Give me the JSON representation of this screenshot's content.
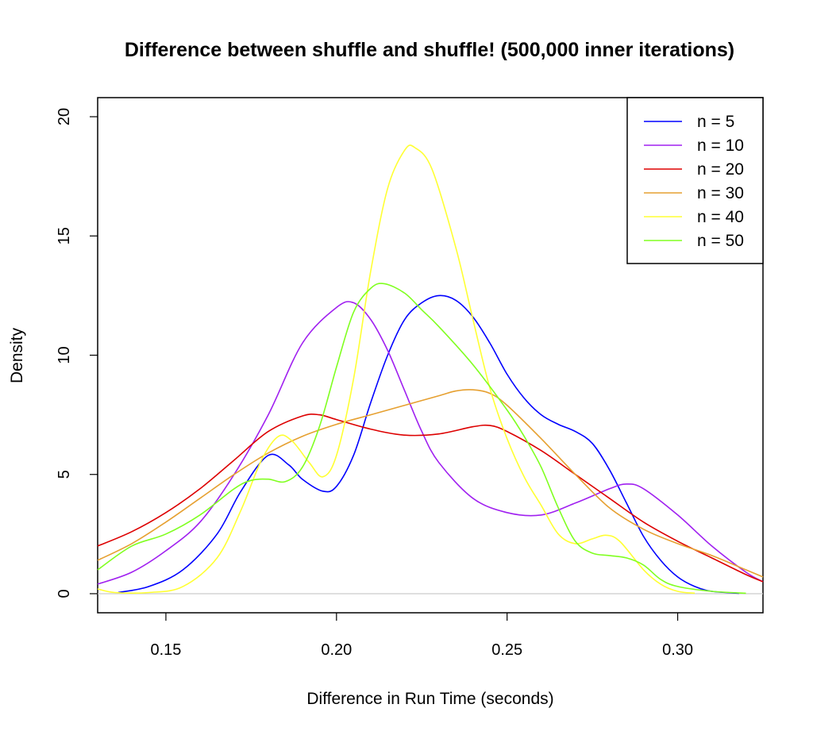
{
  "chart_data": {
    "type": "line",
    "title": "Difference between shuffle and shuffle! (500,000 inner iterations)",
    "xlabel": "Difference in Run Time (seconds)",
    "ylabel": "Density",
    "xlim": [
      0.13,
      0.325
    ],
    "ylim": [
      -0.8,
      20.8
    ],
    "xticks": [
      0.15,
      0.2,
      0.25,
      0.3
    ],
    "xtick_labels": [
      "0.15",
      "0.20",
      "0.25",
      "0.30"
    ],
    "yticks": [
      0,
      5,
      10,
      15,
      20
    ],
    "ytick_labels": [
      "0",
      "5",
      "10",
      "15",
      "20"
    ],
    "grid": false,
    "zero_line": true,
    "legend_position": "top-right",
    "series": [
      {
        "name": "n = 5",
        "color": "#0000ff",
        "points": [
          [
            0.136,
            0.05
          ],
          [
            0.145,
            0.3
          ],
          [
            0.155,
            1.0
          ],
          [
            0.165,
            2.5
          ],
          [
            0.172,
            4.3
          ],
          [
            0.18,
            5.8
          ],
          [
            0.186,
            5.4
          ],
          [
            0.19,
            4.8
          ],
          [
            0.196,
            4.3
          ],
          [
            0.2,
            4.5
          ],
          [
            0.205,
            5.8
          ],
          [
            0.21,
            8.0
          ],
          [
            0.215,
            10.0
          ],
          [
            0.22,
            11.5
          ],
          [
            0.225,
            12.2
          ],
          [
            0.23,
            12.5
          ],
          [
            0.235,
            12.3
          ],
          [
            0.24,
            11.6
          ],
          [
            0.245,
            10.5
          ],
          [
            0.25,
            9.2
          ],
          [
            0.255,
            8.2
          ],
          [
            0.26,
            7.5
          ],
          [
            0.265,
            7.1
          ],
          [
            0.27,
            6.8
          ],
          [
            0.275,
            6.3
          ],
          [
            0.28,
            5.2
          ],
          [
            0.285,
            3.8
          ],
          [
            0.29,
            2.4
          ],
          [
            0.295,
            1.4
          ],
          [
            0.3,
            0.7
          ],
          [
            0.305,
            0.3
          ],
          [
            0.31,
            0.1
          ],
          [
            0.318,
            0.02
          ]
        ]
      },
      {
        "name": "n = 10",
        "color": "#a020f0",
        "points": [
          [
            0.13,
            0.4
          ],
          [
            0.14,
            0.9
          ],
          [
            0.15,
            1.8
          ],
          [
            0.16,
            3.0
          ],
          [
            0.17,
            5.0
          ],
          [
            0.18,
            7.5
          ],
          [
            0.19,
            10.5
          ],
          [
            0.2,
            12.0
          ],
          [
            0.205,
            12.2
          ],
          [
            0.21,
            11.5
          ],
          [
            0.215,
            10.2
          ],
          [
            0.22,
            8.5
          ],
          [
            0.225,
            6.8
          ],
          [
            0.23,
            5.5
          ],
          [
            0.24,
            4.0
          ],
          [
            0.25,
            3.4
          ],
          [
            0.26,
            3.3
          ],
          [
            0.27,
            3.8
          ],
          [
            0.28,
            4.4
          ],
          [
            0.285,
            4.6
          ],
          [
            0.29,
            4.4
          ],
          [
            0.3,
            3.3
          ],
          [
            0.31,
            2.0
          ],
          [
            0.32,
            0.9
          ],
          [
            0.325,
            0.5
          ]
        ]
      },
      {
        "name": "n = 20",
        "color": "#dd0000",
        "points": [
          [
            0.13,
            2.0
          ],
          [
            0.14,
            2.6
          ],
          [
            0.15,
            3.4
          ],
          [
            0.16,
            4.4
          ],
          [
            0.17,
            5.6
          ],
          [
            0.18,
            6.8
          ],
          [
            0.19,
            7.45
          ],
          [
            0.195,
            7.5
          ],
          [
            0.2,
            7.3
          ],
          [
            0.21,
            6.9
          ],
          [
            0.22,
            6.65
          ],
          [
            0.23,
            6.7
          ],
          [
            0.24,
            7.0
          ],
          [
            0.245,
            7.05
          ],
          [
            0.25,
            6.8
          ],
          [
            0.26,
            6.0
          ],
          [
            0.27,
            5.0
          ],
          [
            0.28,
            4.0
          ],
          [
            0.29,
            3.0
          ],
          [
            0.3,
            2.2
          ],
          [
            0.31,
            1.5
          ],
          [
            0.32,
            0.8
          ],
          [
            0.325,
            0.5
          ]
        ]
      },
      {
        "name": "n = 30",
        "color": "#e6a030",
        "points": [
          [
            0.13,
            1.4
          ],
          [
            0.14,
            2.1
          ],
          [
            0.15,
            3.0
          ],
          [
            0.16,
            4.0
          ],
          [
            0.17,
            5.0
          ],
          [
            0.18,
            5.9
          ],
          [
            0.19,
            6.6
          ],
          [
            0.2,
            7.1
          ],
          [
            0.21,
            7.5
          ],
          [
            0.22,
            7.9
          ],
          [
            0.23,
            8.3
          ],
          [
            0.235,
            8.5
          ],
          [
            0.24,
            8.55
          ],
          [
            0.245,
            8.4
          ],
          [
            0.25,
            7.9
          ],
          [
            0.26,
            6.5
          ],
          [
            0.27,
            5.0
          ],
          [
            0.28,
            3.6
          ],
          [
            0.29,
            2.7
          ],
          [
            0.3,
            2.1
          ],
          [
            0.31,
            1.6
          ],
          [
            0.32,
            1.0
          ],
          [
            0.325,
            0.7
          ]
        ]
      },
      {
        "name": "n = 40",
        "color": "#ffff33",
        "points": [
          [
            0.13,
            0.2
          ],
          [
            0.135,
            0.05
          ],
          [
            0.145,
            0.05
          ],
          [
            0.155,
            0.3
          ],
          [
            0.165,
            1.5
          ],
          [
            0.172,
            3.5
          ],
          [
            0.178,
            5.6
          ],
          [
            0.183,
            6.6
          ],
          [
            0.187,
            6.4
          ],
          [
            0.192,
            5.5
          ],
          [
            0.196,
            4.9
          ],
          [
            0.2,
            5.8
          ],
          [
            0.205,
            9.0
          ],
          [
            0.21,
            13.5
          ],
          [
            0.215,
            17.0
          ],
          [
            0.22,
            18.6
          ],
          [
            0.223,
            18.7
          ],
          [
            0.228,
            17.8
          ],
          [
            0.235,
            14.5
          ],
          [
            0.24,
            11.5
          ],
          [
            0.245,
            8.6
          ],
          [
            0.25,
            6.5
          ],
          [
            0.255,
            4.9
          ],
          [
            0.26,
            3.7
          ],
          [
            0.265,
            2.5
          ],
          [
            0.27,
            2.1
          ],
          [
            0.275,
            2.3
          ],
          [
            0.279,
            2.45
          ],
          [
            0.283,
            2.2
          ],
          [
            0.29,
            1.0
          ],
          [
            0.295,
            0.4
          ],
          [
            0.3,
            0.1
          ],
          [
            0.305,
            0.02
          ]
        ]
      },
      {
        "name": "n = 50",
        "color": "#80ff20",
        "points": [
          [
            0.13,
            1.0
          ],
          [
            0.14,
            2.0
          ],
          [
            0.15,
            2.5
          ],
          [
            0.16,
            3.3
          ],
          [
            0.17,
            4.4
          ],
          [
            0.175,
            4.75
          ],
          [
            0.18,
            4.8
          ],
          [
            0.185,
            4.7
          ],
          [
            0.19,
            5.3
          ],
          [
            0.195,
            7.0
          ],
          [
            0.2,
            9.5
          ],
          [
            0.205,
            11.8
          ],
          [
            0.21,
            12.8
          ],
          [
            0.214,
            13.0
          ],
          [
            0.22,
            12.6
          ],
          [
            0.225,
            11.9
          ],
          [
            0.23,
            11.2
          ],
          [
            0.24,
            9.6
          ],
          [
            0.25,
            7.7
          ],
          [
            0.255,
            6.6
          ],
          [
            0.26,
            5.3
          ],
          [
            0.265,
            3.6
          ],
          [
            0.27,
            2.2
          ],
          [
            0.275,
            1.7
          ],
          [
            0.28,
            1.6
          ],
          [
            0.285,
            1.5
          ],
          [
            0.29,
            1.2
          ],
          [
            0.295,
            0.6
          ],
          [
            0.3,
            0.3
          ],
          [
            0.31,
            0.1
          ],
          [
            0.32,
            0.02
          ]
        ]
      }
    ]
  }
}
